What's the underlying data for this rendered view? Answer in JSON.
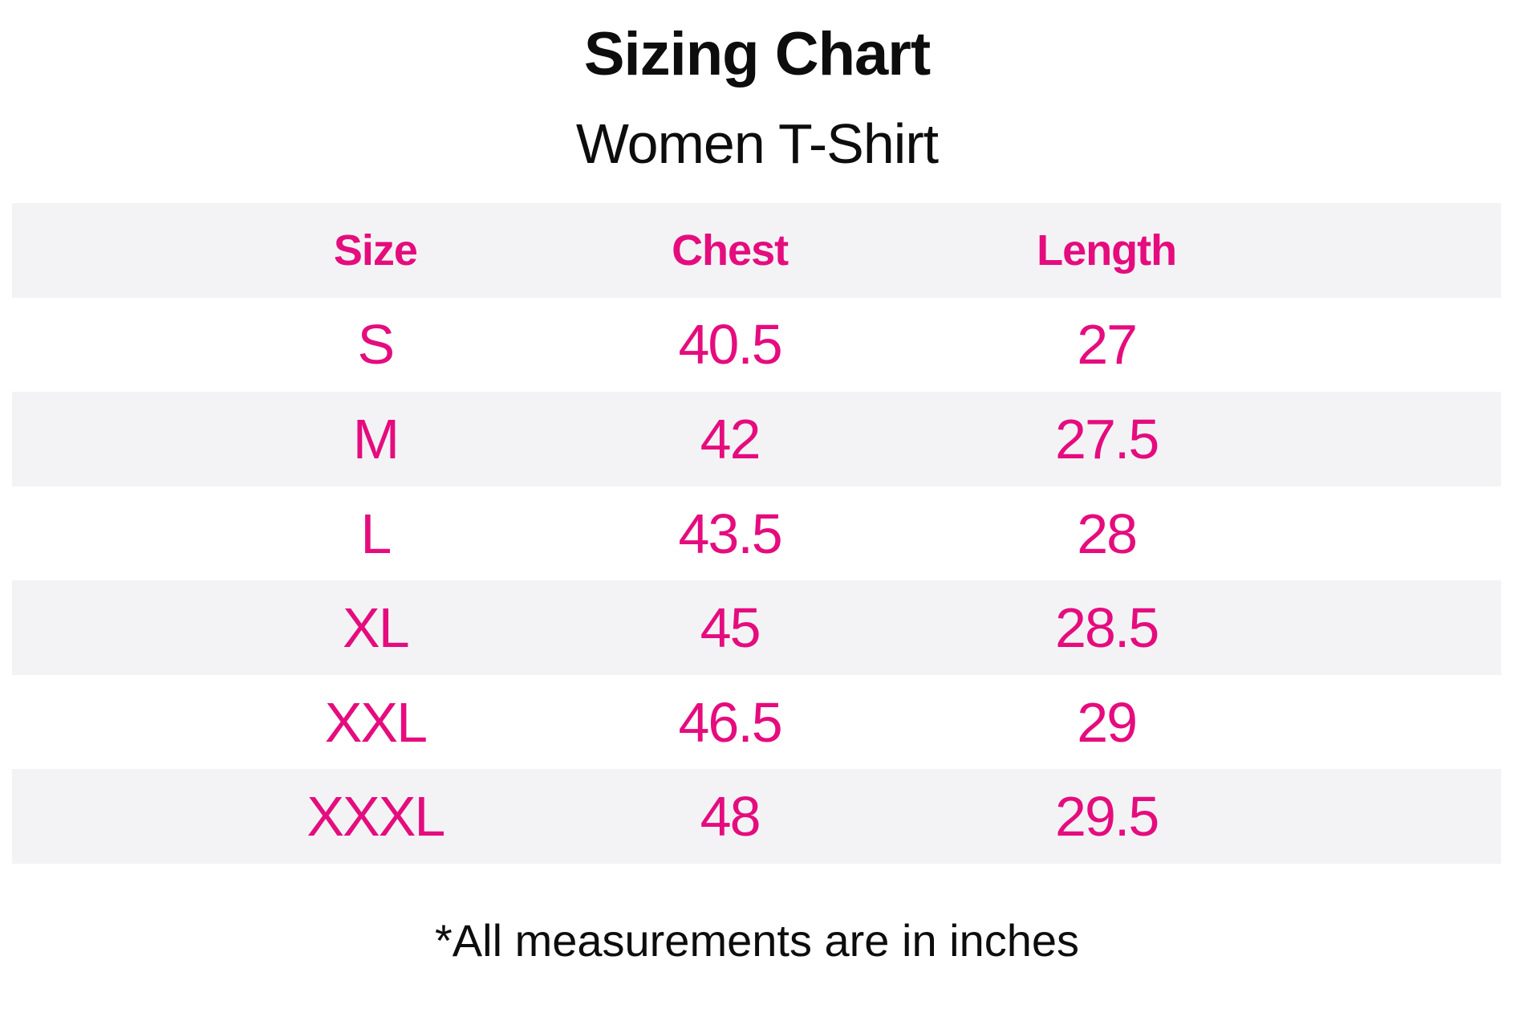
{
  "page": {
    "title": "Sizing Chart",
    "subtitle": "Women T-Shirt",
    "footnote": "*All measurements are in inches"
  },
  "colors": {
    "accent_pink": "#e50c7e",
    "stripe_gray": "#f3f3f6",
    "text_black": "#0d0d0d",
    "background": "#ffffff"
  },
  "chart_data": {
    "type": "table",
    "title": "Sizing Chart",
    "subtitle": "Women T-Shirt",
    "columns": [
      "Size",
      "Chest",
      "Length"
    ],
    "rows": [
      [
        "S",
        "40.5",
        "27"
      ],
      [
        "M",
        "42",
        "27.5"
      ],
      [
        "L",
        "43.5",
        "28"
      ],
      [
        "XL",
        "45",
        "28.5"
      ],
      [
        "XXL",
        "46.5",
        "29"
      ],
      [
        "XXXL",
        "48",
        "29.5"
      ]
    ],
    "units": "inches",
    "footnote": "*All measurements are in inches",
    "layout_hints": {
      "striped_rows": true,
      "header_row_background": "#f3f3f6",
      "first_data_row_background": "#ffffff",
      "grid_lines": false
    }
  }
}
